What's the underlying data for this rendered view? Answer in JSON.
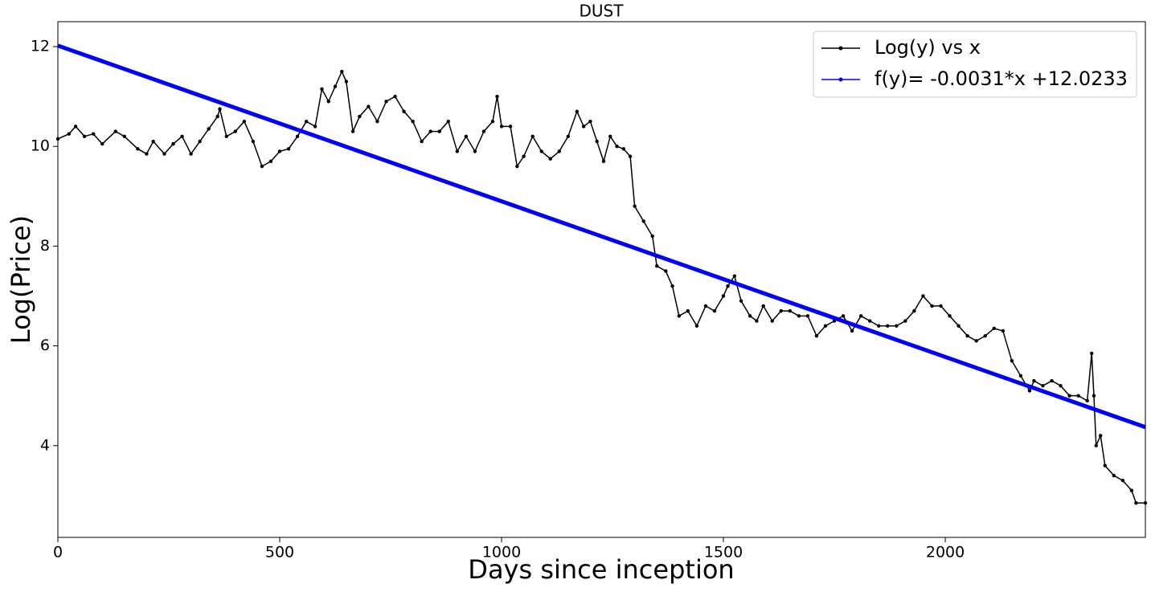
{
  "chart_data": {
    "type": "line",
    "title": "DUST",
    "x_label": "Days since inception",
    "y_label": "Log(Price)",
    "xlim": [
      0,
      2451
    ],
    "ylim": [
      2.16,
      12.5
    ],
    "xticks": [
      0,
      500,
      1000,
      1500,
      2000
    ],
    "yticks": [
      4,
      6,
      8,
      10,
      12
    ],
    "grid": false,
    "legend": "upper right",
    "series": [
      {
        "name": "Log(y) vs x",
        "color": "#000000",
        "marker": true,
        "x": [
          0,
          25,
          40,
          60,
          80,
          100,
          130,
          150,
          180,
          200,
          215,
          240,
          260,
          280,
          300,
          320,
          340,
          360,
          365,
          380,
          400,
          420,
          440,
          460,
          480,
          500,
          520,
          540,
          560,
          580,
          595,
          610,
          625,
          640,
          650,
          665,
          680,
          700,
          720,
          740,
          760,
          780,
          800,
          820,
          840,
          860,
          880,
          900,
          920,
          940,
          960,
          980,
          990,
          1000,
          1020,
          1035,
          1050,
          1070,
          1090,
          1110,
          1130,
          1150,
          1170,
          1185,
          1200,
          1215,
          1230,
          1245,
          1260,
          1275,
          1290,
          1300,
          1320,
          1340,
          1350,
          1370,
          1385,
          1400,
          1420,
          1440,
          1460,
          1480,
          1500,
          1510,
          1525,
          1540,
          1560,
          1575,
          1590,
          1610,
          1630,
          1650,
          1670,
          1690,
          1710,
          1730,
          1750,
          1770,
          1790,
          1810,
          1830,
          1850,
          1870,
          1890,
          1910,
          1930,
          1950,
          1970,
          1990,
          2010,
          2030,
          2050,
          2070,
          2090,
          2110,
          2130,
          2150,
          2170,
          2190,
          2200,
          2220,
          2240,
          2260,
          2280,
          2300,
          2320,
          2330,
          2335,
          2340,
          2350,
          2360,
          2380,
          2400,
          2420,
          2430,
          2451
        ],
        "values": [
          10.15,
          10.25,
          10.4,
          10.2,
          10.25,
          10.05,
          10.3,
          10.2,
          9.95,
          9.85,
          10.1,
          9.85,
          10.05,
          10.2,
          9.85,
          10.1,
          10.35,
          10.6,
          10.75,
          10.2,
          10.3,
          10.5,
          10.1,
          9.6,
          9.7,
          9.9,
          9.95,
          10.2,
          10.5,
          10.4,
          11.15,
          10.9,
          11.2,
          11.5,
          11.3,
          10.3,
          10.6,
          10.8,
          10.5,
          10.9,
          11.0,
          10.7,
          10.5,
          10.1,
          10.3,
          10.3,
          10.5,
          9.9,
          10.2,
          9.9,
          10.3,
          10.5,
          11.0,
          10.4,
          10.4,
          9.6,
          9.8,
          10.2,
          9.9,
          9.75,
          9.9,
          10.2,
          10.7,
          10.4,
          10.5,
          10.1,
          9.7,
          10.2,
          10.0,
          9.95,
          9.8,
          8.8,
          8.5,
          8.2,
          7.6,
          7.5,
          7.2,
          6.6,
          6.7,
          6.4,
          6.8,
          6.7,
          7.0,
          7.2,
          7.4,
          6.9,
          6.6,
          6.5,
          6.8,
          6.5,
          6.7,
          6.7,
          6.6,
          6.6,
          6.2,
          6.4,
          6.5,
          6.6,
          6.3,
          6.6,
          6.5,
          6.4,
          6.4,
          6.4,
          6.5,
          6.7,
          7.0,
          6.8,
          6.8,
          6.6,
          6.4,
          6.2,
          6.1,
          6.2,
          6.35,
          6.3,
          5.7,
          5.4,
          5.1,
          5.3,
          5.2,
          5.3,
          5.2,
          5.0,
          5.0,
          4.9,
          5.85,
          5.0,
          4.0,
          4.2,
          3.6,
          3.4,
          3.3,
          3.1,
          2.85,
          2.85
        ]
      },
      {
        "name": "f(y)= -0.0031*x +12.0233",
        "color": "#0000ff",
        "marker": false,
        "x": [
          0,
          2451
        ],
        "values": [
          12.02,
          4.37
        ]
      }
    ]
  }
}
